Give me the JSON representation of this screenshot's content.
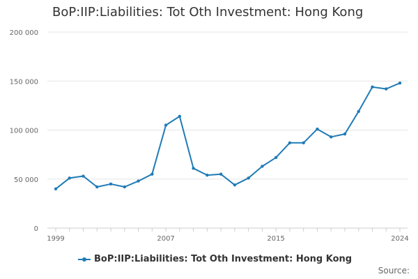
{
  "chart_data": {
    "type": "line",
    "title": "BoP:IIP:Liabilities: Tot Oth Investment: Hong Kong",
    "xlabel": "",
    "ylabel": "",
    "x": [
      1999,
      2000,
      2001,
      2002,
      2003,
      2004,
      2005,
      2006,
      2007,
      2008,
      2009,
      2010,
      2011,
      2012,
      2013,
      2014,
      2015,
      2016,
      2017,
      2018,
      2019,
      2020,
      2021,
      2022,
      2023,
      2024
    ],
    "xticks": [
      1999,
      2007,
      2015,
      2024
    ],
    "xtick_labels": [
      "1999",
      "2007",
      "2015",
      "2024"
    ],
    "ylim": [
      0,
      200000
    ],
    "yticks": [
      0,
      50000,
      100000,
      150000,
      200000
    ],
    "ytick_labels": [
      "0",
      "50 000",
      "100 000",
      "150 000",
      "200 000"
    ],
    "grid": true,
    "series": [
      {
        "name": "BoP:IIP:Liabilities: Tot Oth Investment: Hong Kong",
        "color": "#1f7bb6",
        "values": [
          40000,
          51000,
          53000,
          42000,
          45000,
          42000,
          48000,
          55000,
          105000,
          114000,
          61000,
          54000,
          55000,
          44000,
          51000,
          63000,
          72000,
          87000,
          87000,
          101000,
          93000,
          96000,
          119000,
          144000,
          142000,
          148000
        ]
      }
    ]
  },
  "legend": {
    "label": "BoP:IIP:Liabilities: Tot Oth Investment: Hong Kong"
  },
  "footer": {
    "source": "Source:"
  }
}
